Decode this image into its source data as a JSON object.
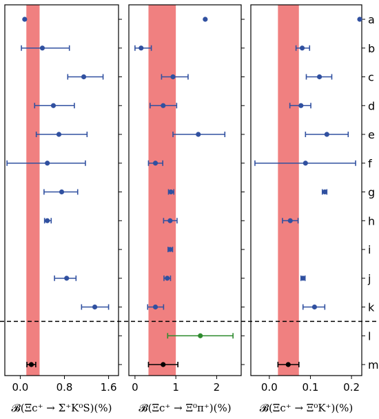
{
  "chart_data": {
    "type": "scatter",
    "rows": [
      "a",
      "b",
      "c",
      "d",
      "e",
      "f",
      "g",
      "h",
      "i",
      "j",
      "k",
      "l",
      "m"
    ],
    "colors": {
      "blue": "#3050a0",
      "green": "#2e8b2e",
      "black": "#000000",
      "band": "#f08080"
    },
    "panels": [
      {
        "xlabel": "𝓑(Ξc⁺ → Σ⁺K⁰S)(%)",
        "xlim": [
          -0.28,
          1.78
        ],
        "xticks": [
          0.0,
          0.8,
          1.6
        ],
        "xtick_labels": [
          "0.0",
          "0.8",
          "1.6"
        ],
        "band": [
          0.11,
          0.35
        ],
        "points": [
          {
            "row": "a",
            "value": 0.08,
            "lo": 0.08,
            "hi": 0.08,
            "color": "blue"
          },
          {
            "row": "b",
            "value": 0.4,
            "lo": 0.02,
            "hi": 0.89,
            "color": "blue"
          },
          {
            "row": "c",
            "value": 1.15,
            "lo": 0.86,
            "hi": 1.5,
            "color": "blue"
          },
          {
            "row": "d",
            "value": 0.6,
            "lo": 0.26,
            "hi": 0.98,
            "color": "blue"
          },
          {
            "row": "e",
            "value": 0.7,
            "lo": 0.29,
            "hi": 1.21,
            "color": "blue"
          },
          {
            "row": "f",
            "value": 0.49,
            "lo": -0.24,
            "hi": 1.18,
            "color": "blue"
          },
          {
            "row": "g",
            "value": 0.75,
            "lo": 0.43,
            "hi": 1.04,
            "color": "blue"
          },
          {
            "row": "h",
            "value": 0.49,
            "lo": 0.44,
            "hi": 0.56,
            "color": "blue"
          },
          {
            "row": "j",
            "value": 0.84,
            "lo": 0.62,
            "hi": 1.01,
            "color": "blue"
          },
          {
            "row": "k",
            "value": 1.35,
            "lo": 1.11,
            "hi": 1.6,
            "color": "blue"
          },
          {
            "row": "m",
            "value": 0.2,
            "lo": 0.12,
            "hi": 0.28,
            "color": "black"
          }
        ]
      },
      {
        "xlabel": "𝓑(Ξc⁺ → Ξ⁰π⁺)(%)",
        "xlim": [
          -0.15,
          2.6
        ],
        "xticks": [
          0,
          1,
          2
        ],
        "xtick_labels": [
          "0",
          "1",
          "2"
        ],
        "band": [
          0.33,
          1.0
        ],
        "points": [
          {
            "row": "a",
            "value": 1.72,
            "lo": 1.72,
            "hi": 1.72,
            "color": "blue"
          },
          {
            "row": "b",
            "value": 0.15,
            "lo": 0.0,
            "hi": 0.4,
            "color": "blue"
          },
          {
            "row": "c",
            "value": 0.93,
            "lo": 0.65,
            "hi": 1.3,
            "color": "blue"
          },
          {
            "row": "d",
            "value": 0.69,
            "lo": 0.37,
            "hi": 1.02,
            "color": "blue"
          },
          {
            "row": "e",
            "value": 1.55,
            "lo": 0.93,
            "hi": 2.2,
            "color": "blue"
          },
          {
            "row": "f",
            "value": 0.5,
            "lo": 0.33,
            "hi": 0.68,
            "color": "blue"
          },
          {
            "row": "g",
            "value": 0.88,
            "lo": 0.82,
            "hi": 0.95,
            "color": "blue"
          },
          {
            "row": "h",
            "value": 0.86,
            "lo": 0.7,
            "hi": 1.03,
            "color": "blue"
          },
          {
            "row": "i",
            "value": 0.86,
            "lo": 0.81,
            "hi": 0.92,
            "color": "blue"
          },
          {
            "row": "j",
            "value": 0.79,
            "lo": 0.71,
            "hi": 0.87,
            "color": "blue"
          },
          {
            "row": "k",
            "value": 0.5,
            "lo": 0.31,
            "hi": 0.7,
            "color": "blue"
          },
          {
            "row": "l",
            "value": 1.6,
            "lo": 0.8,
            "hi": 2.4,
            "color": "green"
          },
          {
            "row": "m",
            "value": 0.69,
            "lo": 0.33,
            "hi": 1.05,
            "color": "black"
          }
        ]
      },
      {
        "xlabel": "𝓑(Ξc⁺ → Ξ⁰K⁺)(%)",
        "xlim": [
          -0.045,
          0.225
        ],
        "xticks": [
          0.0,
          0.1,
          0.2
        ],
        "xtick_labels": [
          "0.0",
          "0.1",
          "0.2"
        ],
        "band": [
          0.021,
          0.072
        ],
        "points": [
          {
            "row": "a",
            "value": 0.22,
            "lo": 0.22,
            "hi": 0.22,
            "color": "blue"
          },
          {
            "row": "b",
            "value": 0.08,
            "lo": 0.065,
            "hi": 0.098,
            "color": "blue"
          },
          {
            "row": "c",
            "value": 0.122,
            "lo": 0.09,
            "hi": 0.152,
            "color": "blue"
          },
          {
            "row": "d",
            "value": 0.077,
            "lo": 0.05,
            "hi": 0.101,
            "color": "blue"
          },
          {
            "row": "e",
            "value": 0.14,
            "lo": 0.088,
            "hi": 0.192,
            "color": "blue"
          },
          {
            "row": "f",
            "value": 0.088,
            "lo": -0.035,
            "hi": 0.21,
            "color": "blue"
          },
          {
            "row": "g",
            "value": 0.135,
            "lo": 0.129,
            "hi": 0.14,
            "color": "blue"
          },
          {
            "row": "h",
            "value": 0.051,
            "lo": 0.032,
            "hi": 0.07,
            "color": "blue"
          },
          {
            "row": "j",
            "value": 0.082,
            "lo": 0.077,
            "hi": 0.087,
            "color": "blue"
          },
          {
            "row": "k",
            "value": 0.11,
            "lo": 0.082,
            "hi": 0.135,
            "color": "blue"
          },
          {
            "row": "m",
            "value": 0.046,
            "lo": 0.021,
            "hi": 0.072,
            "color": "black"
          }
        ]
      }
    ]
  }
}
